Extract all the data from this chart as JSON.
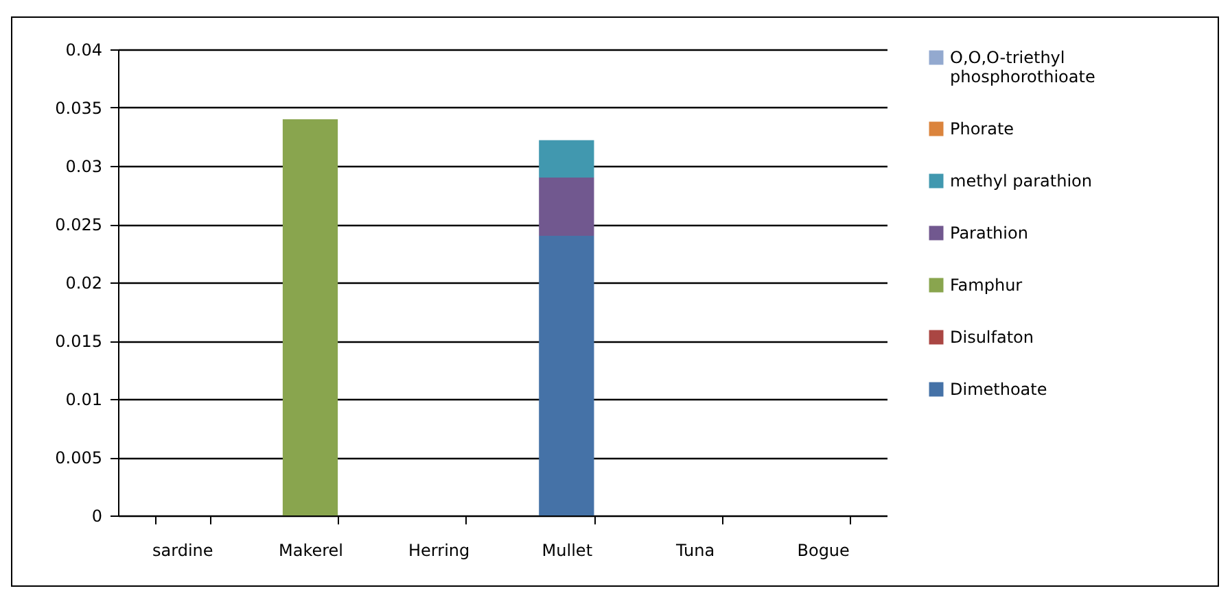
{
  "chart_data": {
    "type": "bar",
    "stacked": true,
    "categories": [
      "sardine",
      "Makerel",
      "Herring",
      "Mullet",
      "Tuna",
      "Bogue"
    ],
    "series": [
      {
        "name": "Dimethoate",
        "color": "#4572a7",
        "values": [
          0,
          0,
          0,
          0.024,
          0,
          0
        ]
      },
      {
        "name": "Disulfaton",
        "color": "#aa4643",
        "values": [
          0,
          0,
          0,
          0,
          0,
          0
        ]
      },
      {
        "name": "Famphur",
        "color": "#89a54e",
        "values": [
          0,
          0.034,
          0,
          0,
          0,
          0
        ]
      },
      {
        "name": "Parathion",
        "color": "#71588f",
        "values": [
          0,
          0,
          0,
          0.005,
          0,
          0
        ]
      },
      {
        "name": "methyl parathion",
        "color": "#4198af",
        "values": [
          0,
          0,
          0,
          0.0032,
          0,
          0
        ]
      },
      {
        "name": "Phorate",
        "color": "#db843d",
        "values": [
          0,
          0,
          0,
          0,
          0,
          0
        ]
      },
      {
        "name": "O,O,O-triethyl phosphorothioate",
        "color": "#93a9cf",
        "values": [
          0,
          0,
          0,
          0,
          0,
          0
        ]
      }
    ],
    "ylim": [
      0,
      0.04
    ],
    "yticks": [
      0,
      0.005,
      0.01,
      0.015,
      0.02,
      0.025,
      0.03,
      0.035,
      0.04
    ],
    "grid": "y",
    "legend": "right"
  }
}
